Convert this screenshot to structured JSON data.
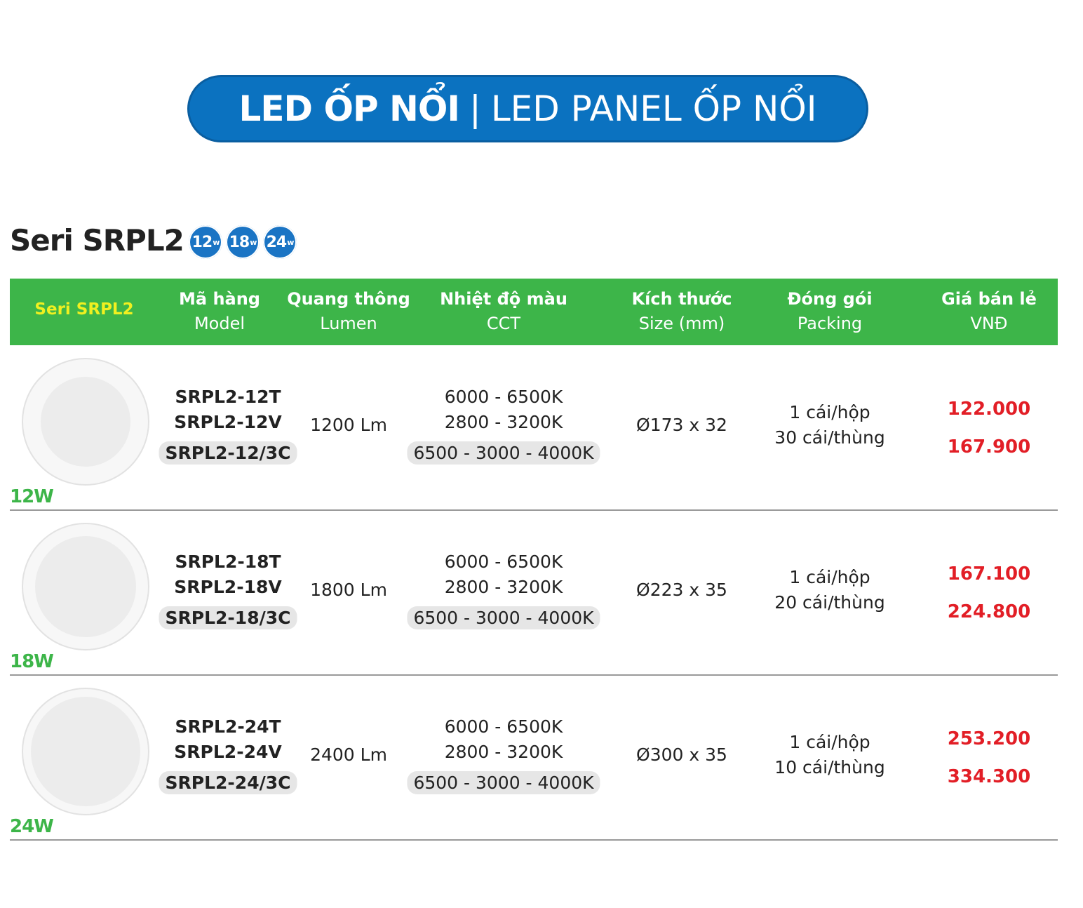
{
  "banner": {
    "bold": "LED ỐP NỔI",
    "separator": "|",
    "light": "LED PANEL ỐP NỔI"
  },
  "series": {
    "title": "Seri SRPL2",
    "badges": [
      {
        "value": "12",
        "unit": "w"
      },
      {
        "value": "18",
        "unit": "w"
      },
      {
        "value": "24",
        "unit": "w"
      }
    ]
  },
  "table": {
    "header": [
      {
        "vi": "Seri SRPL2"
      },
      {
        "vi": "Mã hàng",
        "en": "Model"
      },
      {
        "vi": "Quang thông",
        "en": "Lumen"
      },
      {
        "vi": "Nhiệt độ màu",
        "en": "CCT"
      },
      {
        "vi": "Kích thước",
        "en": "Size (mm)"
      },
      {
        "vi": "Đóng gói",
        "en": "Packing"
      },
      {
        "vi": "Giá bán lẻ",
        "en": "VNĐ"
      }
    ],
    "rows": [
      {
        "wattage": "12W",
        "models": [
          "SRPL2-12T",
          "SRPL2-12V",
          "SRPL2-12/3C"
        ],
        "lumen": "1200 Lm",
        "cct": [
          "6000 - 6500K",
          "2800 - 3200K",
          "6500 - 3000 - 4000K"
        ],
        "size": "Ø173 x 32",
        "packing": [
          "1 cái/hộp",
          "30 cái/thùng"
        ],
        "prices": [
          "122.000",
          "167.900"
        ]
      },
      {
        "wattage": "18W",
        "models": [
          "SRPL2-18T",
          "SRPL2-18V",
          "SRPL2-18/3C"
        ],
        "lumen": "1800 Lm",
        "cct": [
          "6000 - 6500K",
          "2800 - 3200K",
          "6500 - 3000 - 4000K"
        ],
        "size": "Ø223 x 35",
        "packing": [
          "1 cái/hộp",
          "20 cái/thùng"
        ],
        "prices": [
          "167.100",
          "224.800"
        ]
      },
      {
        "wattage": "24W",
        "models": [
          "SRPL2-24T",
          "SRPL2-24V",
          "SRPL2-24/3C"
        ],
        "lumen": "2400 Lm",
        "cct": [
          "6000 - 6500K",
          "2800 - 3200K",
          "6500 - 3000 - 4000K"
        ],
        "size": "Ø300 x 35",
        "packing": [
          "1 cái/hộp",
          "10 cái/thùng"
        ],
        "prices": [
          "253.200",
          "334.300"
        ]
      }
    ]
  }
}
